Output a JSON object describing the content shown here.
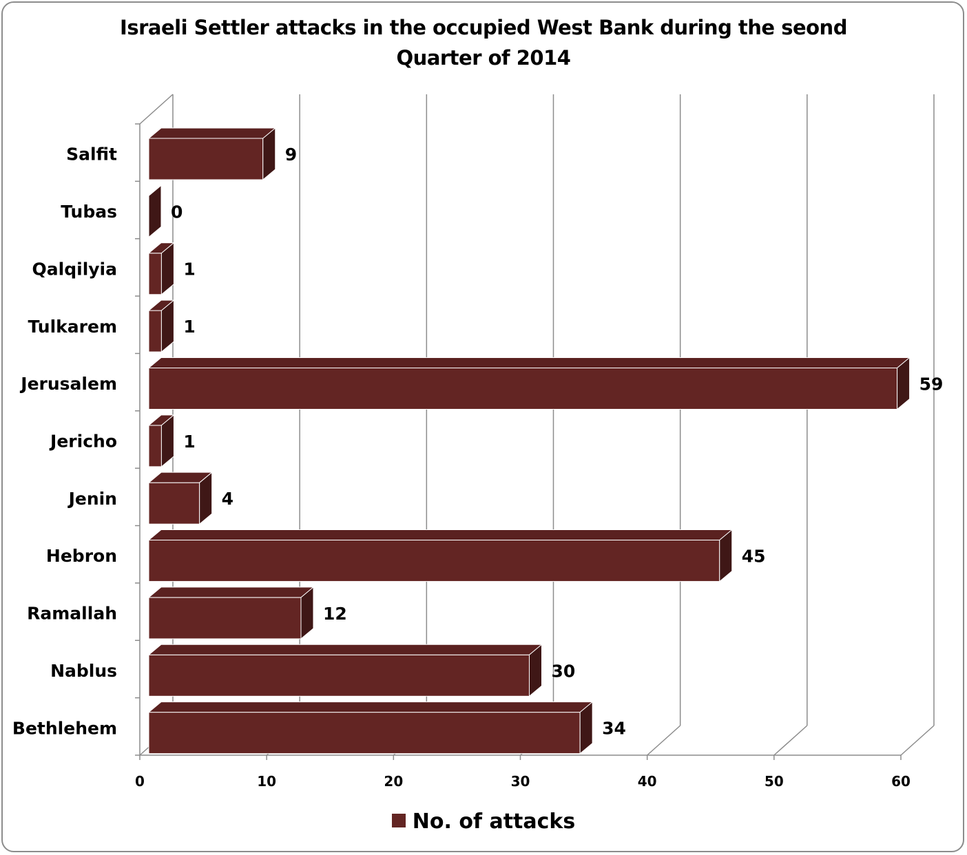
{
  "chart_data": {
    "type": "bar",
    "orientation": "horizontal",
    "title": "Israeli Settler attacks in the occupied West Bank during the seond Quarter of 2014",
    "categories": [
      "Salfit",
      "Tubas",
      "Qalqilyia",
      "Tulkarem",
      "Jerusalem",
      "Jericho",
      "Jenin",
      "Hebron",
      "Ramallah",
      "Nablus",
      "Bethlehem"
    ],
    "series": [
      {
        "name": "No. of attacks",
        "values": [
          9,
          0,
          1,
          1,
          59,
          1,
          4,
          45,
          12,
          30,
          34
        ],
        "color": "#632523"
      }
    ],
    "xlim": [
      0,
      60
    ],
    "xticks": [
      0,
      10,
      20,
      30,
      40,
      50,
      60
    ],
    "grid": true,
    "legend": "bottom",
    "style_3d": true
  }
}
